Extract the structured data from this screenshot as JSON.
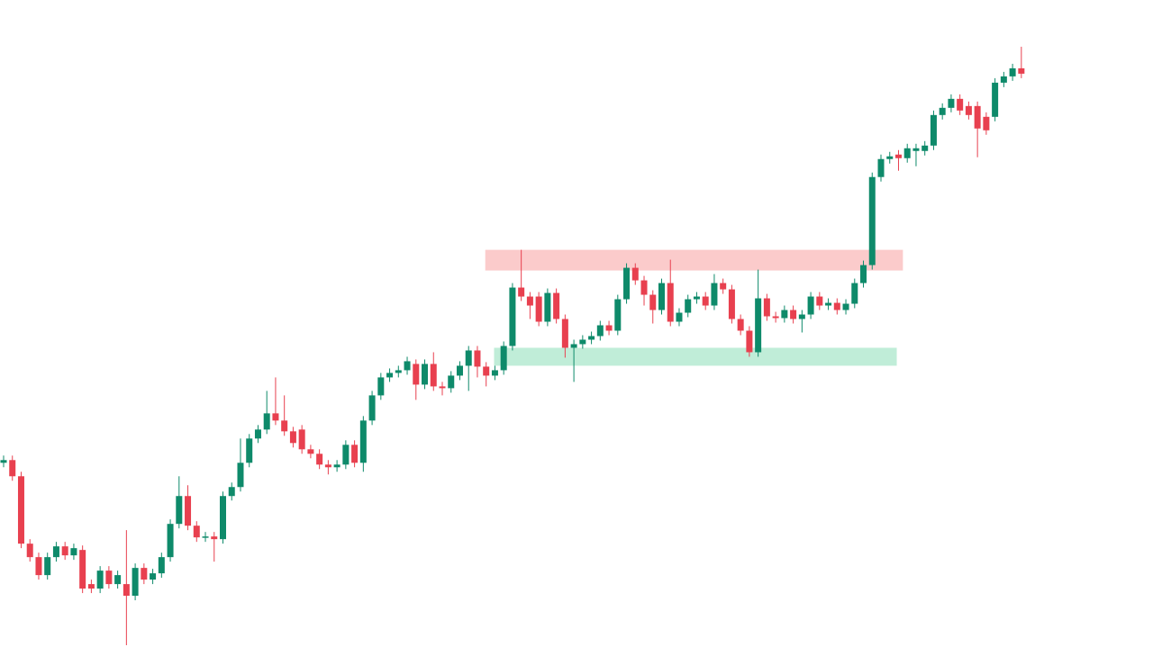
{
  "chart_data": {
    "type": "candlestick",
    "ylim": [
      0,
      720
    ],
    "up_color": "#0e8a6a",
    "down_color": "#e8404f",
    "open": [
      205,
      208,
      190,
      115,
      100,
      80,
      100,
      112,
      102,
      108,
      70,
      65,
      85,
      70,
      70,
      57,
      88,
      75,
      82,
      100,
      137,
      168,
      135,
      122,
      123,
      120,
      168,
      178,
      205,
      232,
      242,
      260,
      252,
      240,
      242,
      220,
      215,
      203,
      200,
      203,
      225,
      205,
      252,
      280,
      300,
      305,
      308,
      315,
      292,
      315,
      290,
      288,
      302,
      313,
      330,
      312,
      302,
      308,
      335,
      400,
      390,
      390,
      362,
      394,
      365,
      333,
      337,
      342,
      346,
      358,
      352,
      387,
      422,
      408,
      392,
      375,
      405,
      362,
      372,
      387,
      390,
      380,
      405,
      398,
      365,
      352,
      328,
      388,
      368,
      366,
      375,
      365,
      370,
      390,
      380,
      383,
      375,
      382,
      405,
      425,
      523,
      543,
      548,
      544,
      552,
      552,
      558,
      592,
      600,
      610,
      602,
      602,
      590,
      590,
      628,
      635,
      644
    ],
    "high": [
      213,
      213,
      195,
      120,
      105,
      105,
      117,
      117,
      115,
      113,
      75,
      90,
      90,
      85,
      130,
      93,
      93,
      87,
      105,
      142,
      190,
      180,
      140,
      128,
      128,
      173,
      183,
      232,
      237,
      247,
      285,
      300,
      280,
      245,
      247,
      225,
      220,
      208,
      208,
      230,
      230,
      257,
      285,
      305,
      310,
      313,
      323,
      320,
      320,
      328,
      295,
      307,
      318,
      335,
      335,
      317,
      313,
      340,
      405,
      442,
      395,
      395,
      399,
      399,
      370,
      342,
      347,
      351,
      363,
      363,
      392,
      427,
      427,
      413,
      397,
      410,
      431,
      377,
      392,
      395,
      395,
      415,
      410,
      403,
      370,
      357,
      420,
      393,
      373,
      380,
      380,
      375,
      395,
      395,
      388,
      388,
      387,
      410,
      430,
      528,
      548,
      551,
      553,
      560,
      560,
      563,
      597,
      605,
      615,
      615,
      607,
      607,
      595,
      633,
      640,
      649,
      668
    ],
    "low": [
      200,
      185,
      110,
      95,
      75,
      75,
      95,
      97,
      97,
      60,
      60,
      60,
      65,
      65,
      2,
      52,
      70,
      70,
      77,
      95,
      132,
      130,
      117,
      117,
      95,
      115,
      163,
      173,
      200,
      227,
      237,
      247,
      235,
      222,
      215,
      210,
      198,
      192,
      195,
      198,
      200,
      195,
      247,
      275,
      295,
      300,
      303,
      275,
      287,
      285,
      280,
      283,
      297,
      285,
      300,
      290,
      297,
      303,
      330,
      385,
      365,
      357,
      357,
      360,
      322,
      295,
      332,
      337,
      341,
      347,
      347,
      382,
      403,
      380,
      360,
      370,
      357,
      357,
      367,
      382,
      375,
      375,
      393,
      360,
      347,
      323,
      323,
      363,
      361,
      361,
      360,
      350,
      365,
      375,
      375,
      370,
      370,
      377,
      400,
      420,
      518,
      538,
      530,
      539,
      535,
      547,
      553,
      587,
      595,
      592,
      587,
      545,
      570,
      585,
      623,
      630,
      633
    ],
    "close": [
      208,
      190,
      115,
      100,
      80,
      100,
      112,
      102,
      110,
      65,
      65,
      85,
      70,
      80,
      57,
      88,
      75,
      82,
      100,
      137,
      168,
      135,
      122,
      123,
      120,
      168,
      178,
      205,
      232,
      242,
      260,
      252,
      240,
      227,
      220,
      215,
      203,
      200,
      203,
      225,
      205,
      252,
      280,
      300,
      305,
      308,
      318,
      292,
      315,
      290,
      288,
      302,
      313,
      330,
      312,
      302,
      308,
      335,
      400,
      390,
      380,
      362,
      394,
      365,
      333,
      337,
      342,
      346,
      358,
      352,
      387,
      422,
      408,
      392,
      375,
      405,
      362,
      372,
      387,
      390,
      380,
      405,
      398,
      365,
      352,
      328,
      388,
      368,
      366,
      375,
      365,
      370,
      390,
      380,
      383,
      375,
      382,
      405,
      425,
      523,
      543,
      546,
      544,
      555,
      555,
      558,
      592,
      600,
      610,
      597,
      592,
      577,
      575,
      628,
      635,
      644,
      638
    ],
    "zones": [
      {
        "top": 442,
        "bottom": 419,
        "start": 54.9,
        "end": 102.5,
        "color": "rgba(248,160,160,0.55)"
      },
      {
        "top": 333,
        "bottom": 313,
        "start": 55.9,
        "end": 101.8,
        "color": "rgba(150,225,190,0.6)"
      }
    ]
  }
}
